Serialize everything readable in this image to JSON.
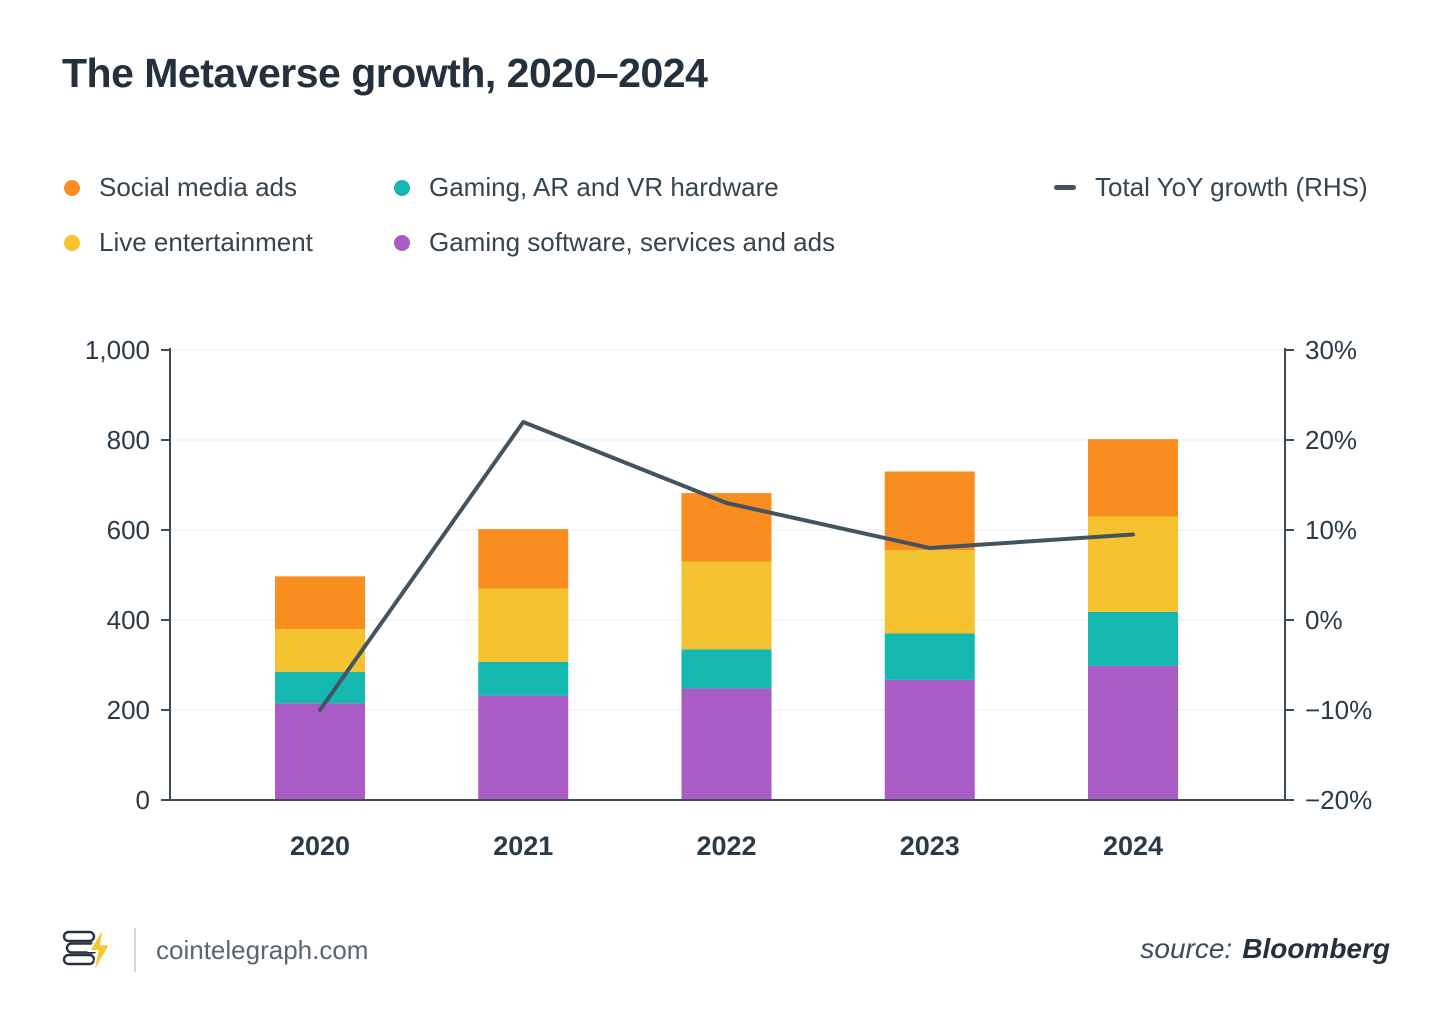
{
  "title": "The Metaverse growth, 2020–2024",
  "legend": {
    "items": [
      {
        "label": "Social media ads",
        "color": "#F98E20",
        "type": "dot"
      },
      {
        "label": "Gaming, AR and VR hardware",
        "color": "#14B8AE",
        "type": "dot"
      },
      {
        "label": "Total YoY growth (RHS)",
        "color": "#44545F",
        "type": "dash"
      },
      {
        "label": "Live entertainment",
        "color": "#F5C32F",
        "type": "dot"
      },
      {
        "label": "Gaming software, services and ads",
        "color": "#A95BC6",
        "type": "dot"
      }
    ]
  },
  "chart_data": {
    "type": "bar",
    "stacked": true,
    "title": "The Metaverse growth, 2020–2024",
    "categories": [
      "2020",
      "2021",
      "2022",
      "2023",
      "2024"
    ],
    "series": [
      {
        "name": "Gaming software, services and ads",
        "color": "#A95BC6",
        "values": [
          215,
          232,
          248,
          267,
          298
        ]
      },
      {
        "name": "Gaming, AR and VR hardware",
        "color": "#14B8AE",
        "values": [
          70,
          75,
          87,
          103,
          120
        ]
      },
      {
        "name": "Live entertainment",
        "color": "#F5C32F",
        "values": [
          95,
          163,
          195,
          185,
          212
        ]
      },
      {
        "name": "Social media ads",
        "color": "#F98E20",
        "values": [
          117,
          132,
          152,
          175,
          172
        ]
      }
    ],
    "line_series": {
      "name": "Total YoY growth (RHS)",
      "color": "#44545F",
      "axis": "right",
      "values": [
        -10,
        22,
        13,
        8,
        9.5
      ]
    },
    "left_axis": {
      "min": 0,
      "max": 1000,
      "tick_values": [
        0,
        200,
        400,
        600,
        800,
        1000
      ],
      "tick_labels": [
        "0",
        "200",
        "400",
        "600",
        "800",
        "1,000"
      ]
    },
    "right_axis": {
      "min": -20,
      "max": 30,
      "tick_values": [
        -20,
        -10,
        0,
        10,
        20,
        30
      ],
      "tick_labels": [
        "−20%",
        "−10%",
        "0%",
        "10%",
        "20%",
        "30%"
      ]
    },
    "grid": true,
    "legend_position": "top"
  },
  "footer": {
    "brand": "cointelegraph.com",
    "source_label": "source:",
    "source_value": "Bloomberg"
  },
  "colors": {
    "axis": "#3E4C59",
    "grid": "#EBEEF1",
    "text": "#2B3A47",
    "accent_yellow": "#F7C52C"
  }
}
